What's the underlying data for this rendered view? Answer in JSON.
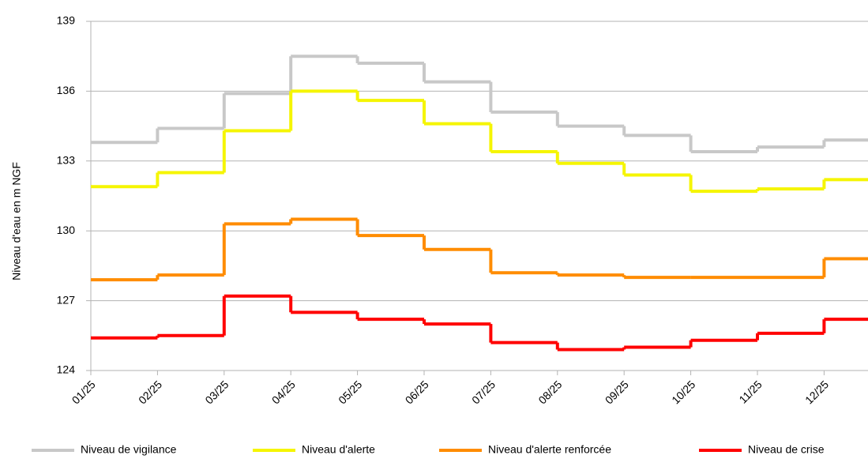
{
  "chart_data": {
    "type": "step-line",
    "ylabel": "Niveau d'eau en m NGF",
    "categories": [
      "01/25",
      "02/25",
      "03/25",
      "04/25",
      "05/25",
      "06/25",
      "07/25",
      "08/25",
      "09/25",
      "10/25",
      "11/25",
      "12/25"
    ],
    "series": [
      {
        "name": "Niveau de vigilance",
        "color": "#c8c8c8",
        "values": [
          133.8,
          134.4,
          135.9,
          137.5,
          137.2,
          136.4,
          135.1,
          134.5,
          134.1,
          133.4,
          133.6,
          133.9
        ]
      },
      {
        "name": "Niveau d'alerte",
        "color": "#f5f500",
        "values": [
          131.9,
          132.5,
          134.3,
          136.0,
          135.6,
          134.6,
          133.4,
          132.9,
          132.4,
          131.7,
          131.8,
          132.2
        ]
      },
      {
        "name": "Niveau d'alerte renforcée",
        "color": "#ff8c00",
        "values": [
          127.9,
          128.1,
          130.3,
          130.5,
          129.8,
          129.2,
          128.2,
          128.1,
          128.0,
          128.0,
          128.0,
          128.8
        ]
      },
      {
        "name": "Niveau de crise",
        "color": "#ff0000",
        "values": [
          125.4,
          125.5,
          127.2,
          126.5,
          126.2,
          126.0,
          125.2,
          124.9,
          125.0,
          125.3,
          125.6,
          126.2
        ]
      }
    ],
    "ylim": [
      124,
      139
    ],
    "yticks": [
      124,
      127,
      130,
      133,
      136,
      139
    ],
    "grid": true,
    "legend": "bottom"
  }
}
